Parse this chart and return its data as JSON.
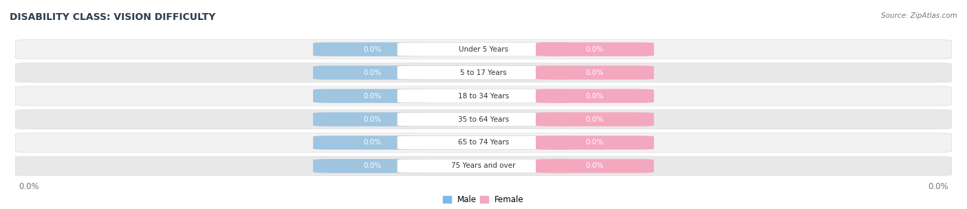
{
  "title": "DISABILITY CLASS: VISION DIFFICULTY",
  "source_text": "Source: ZipAtlas.com",
  "categories": [
    "Under 5 Years",
    "5 to 17 Years",
    "18 to 34 Years",
    "35 to 64 Years",
    "65 to 74 Years",
    "75 Years and over"
  ],
  "male_values": [
    0.0,
    0.0,
    0.0,
    0.0,
    0.0,
    0.0
  ],
  "female_values": [
    0.0,
    0.0,
    0.0,
    0.0,
    0.0,
    0.0
  ],
  "male_color": "#9fc5e0",
  "female_color": "#f4a8bf",
  "row_bg_color_light": "#f2f2f2",
  "row_bg_color_dark": "#e8e8e8",
  "label_bg_male": "#9fc5e0",
  "label_bg_female": "#f4a8bf",
  "label_text_color": "#ffffff",
  "category_text_color": "#333333",
  "title_color": "#2d3e50",
  "axis_label_color": "#777777",
  "legend_male_color": "#7cb9e8",
  "legend_female_color": "#f4a8bf",
  "value_label": "0.0%",
  "x_axis_left_label": "0.0%",
  "x_axis_right_label": "0.0%",
  "figwidth": 14.06,
  "figheight": 3.04,
  "dpi": 100
}
